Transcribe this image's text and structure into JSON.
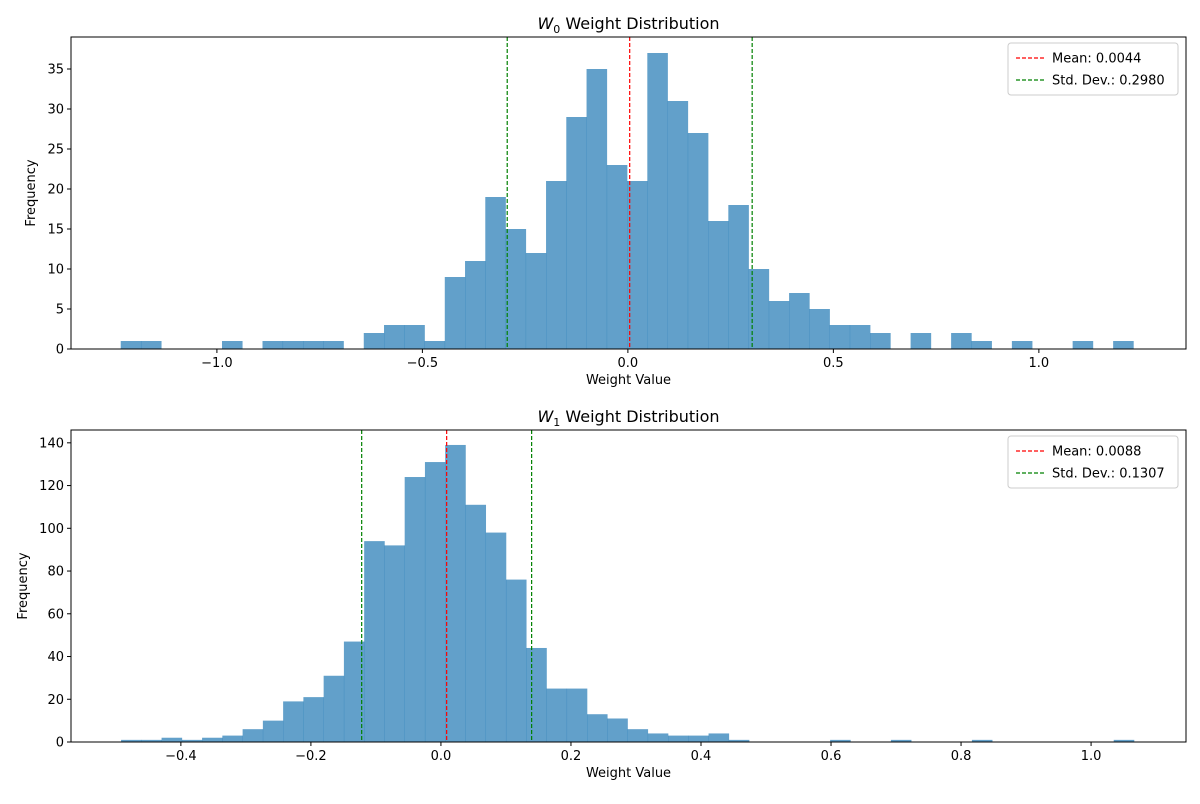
{
  "colors": {
    "bars": "#1f77b4",
    "mean_line": "#ff0000",
    "std_line": "#008000"
  },
  "chart_data": [
    {
      "type": "bar",
      "title": {
        "var": "W",
        "sub": "0",
        "text": " Weight Distribution"
      },
      "xlabel": "Weight Value",
      "ylabel": "Frequency",
      "xlim": [
        -1.355,
        1.358
      ],
      "ylim": [
        0,
        39
      ],
      "xticks": [
        -1.0,
        -0.5,
        0.0,
        0.5,
        1.0
      ],
      "xtick_labels": [
        "−1.0",
        "−0.5",
        "0.0",
        "0.5",
        "1.0"
      ],
      "yticks": [
        0,
        5,
        10,
        15,
        20,
        25,
        30,
        35
      ],
      "ytick_labels": [
        "0",
        "5",
        "10",
        "15",
        "20",
        "25",
        "30",
        "35"
      ],
      "bin_range": [
        -1.234,
        1.23
      ],
      "counts": [
        1,
        1,
        0,
        0,
        0,
        1,
        0,
        1,
        1,
        1,
        1,
        0,
        2,
        3,
        3,
        1,
        9,
        11,
        19,
        15,
        12,
        21,
        29,
        35,
        23,
        21,
        37,
        31,
        27,
        16,
        18,
        10,
        6,
        7,
        5,
        3,
        3,
        2,
        0,
        2,
        0,
        2,
        1,
        0,
        1,
        0,
        0,
        1,
        0,
        1
      ],
      "mean": 0.0044,
      "std": 0.298,
      "legend": {
        "placement": "top-right",
        "entries": [
          "Mean: 0.0044",
          "Std. Dev.: 0.2980"
        ]
      }
    },
    {
      "type": "bar",
      "title": {
        "var": "W",
        "sub": "1",
        "text": " Weight Distribution"
      },
      "xlabel": "Weight Value",
      "ylabel": "Frequency",
      "xlim": [
        -0.569,
        1.146
      ],
      "ylim": [
        0,
        146
      ],
      "xticks": [
        -0.4,
        -0.2,
        0.0,
        0.2,
        0.4,
        0.6,
        0.8,
        1.0
      ],
      "xtick_labels": [
        "−0.4",
        "−0.2",
        "0.0",
        "0.2",
        "0.4",
        "0.6",
        "0.8",
        "1.0"
      ],
      "yticks": [
        0,
        20,
        40,
        60,
        80,
        100,
        120,
        140
      ],
      "ytick_labels": [
        "0",
        "20",
        "40",
        "60",
        "80",
        "100",
        "120",
        "140"
      ],
      "bin_range": [
        -0.492,
        1.066
      ],
      "counts": [
        1,
        1,
        2,
        1,
        2,
        3,
        6,
        10,
        19,
        21,
        31,
        47,
        94,
        92,
        124,
        131,
        139,
        111,
        98,
        76,
        44,
        25,
        25,
        13,
        11,
        6,
        4,
        3,
        3,
        4,
        1,
        0,
        0,
        0,
        0,
        1,
        0,
        0,
        1,
        0,
        0,
        0,
        1,
        0,
        0,
        0,
        0,
        0,
        0,
        1
      ],
      "mean": 0.0088,
      "std": 0.1307,
      "legend": {
        "placement": "top-right",
        "entries": [
          "Mean: 0.0088",
          "Std. Dev.: 0.1307"
        ]
      }
    }
  ]
}
